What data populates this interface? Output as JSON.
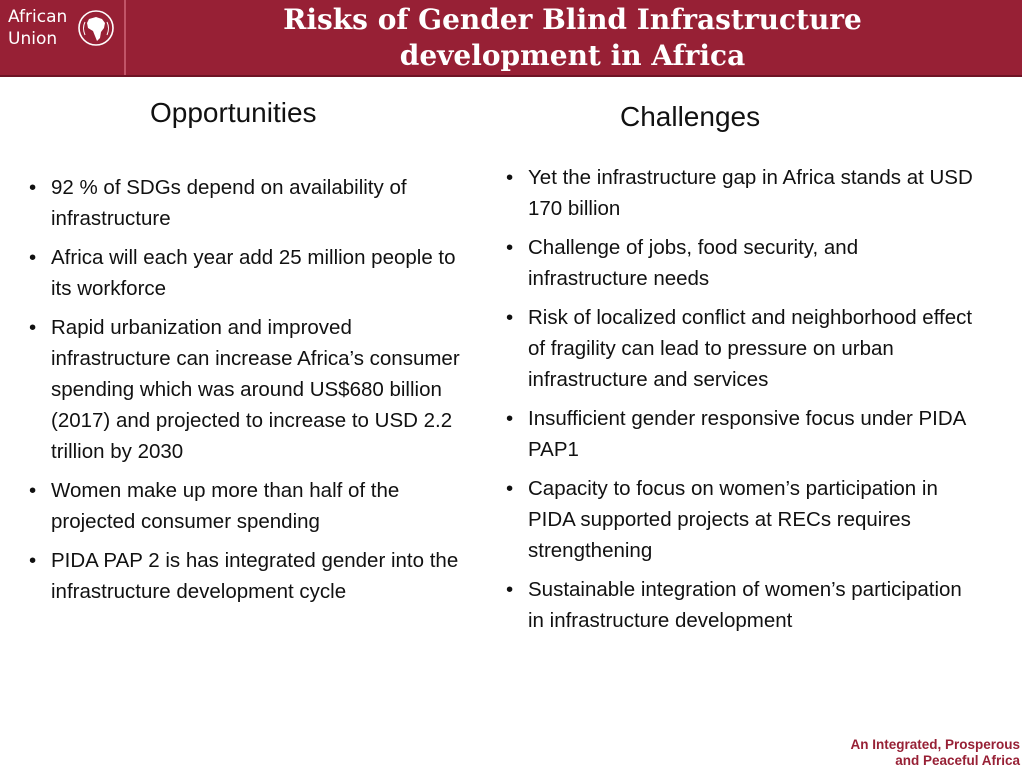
{
  "header": {
    "logo_line1": "African",
    "logo_line2": "Union",
    "title_line1": "Risks of Gender Blind Infrastructure",
    "title_line2": "development in Africa",
    "background": "#972035"
  },
  "opportunities": {
    "heading": "Opportunities",
    "items": [
      "92 % of SDGs depend on availability of infrastructure",
      "Africa will each year add 25 million people to its workforce",
      "Rapid urbanization and improved infrastructure can increase Africa’s consumer spending which was around US$680 billion (2017) and projected to increase to USD 2.2 trillion by 2030",
      "Women make up more than half of the projected consumer spending",
      "PIDA PAP 2 is has integrated gender into the infrastructure development cycle"
    ]
  },
  "challenges": {
    "heading": "Challenges",
    "items": [
      "Yet the infrastructure gap in Africa stands at USD 170 billion",
      "Challenge of jobs, food security, and infrastructure needs",
      "Risk of localized conflict and neighborhood effect of fragility can lead to pressure on urban infrastructure and services",
      "Insufficient gender responsive focus under PIDA PAP1",
      "Capacity to focus on women’s participation in PIDA supported projects at RECs requires strengthening",
      "Sustainable integration of women’s participation in infrastructure development"
    ]
  },
  "footer": {
    "slogan_line1": "An Integrated, Prosperous",
    "slogan_line2": "and Peaceful Africa",
    "color": "#972035"
  }
}
